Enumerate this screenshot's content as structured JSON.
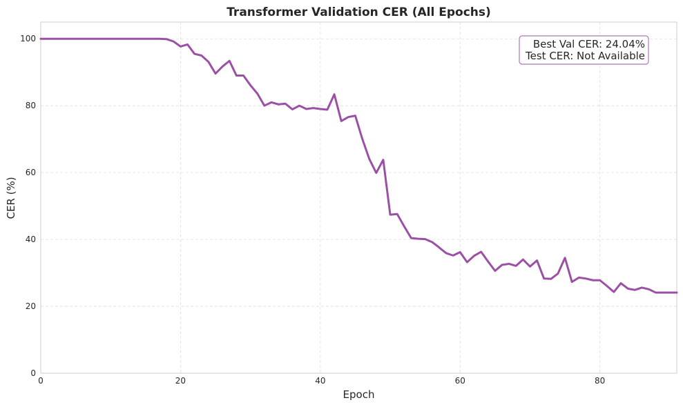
{
  "chart_data": {
    "type": "line",
    "title": "Transformer Validation CER (All Epochs)",
    "xlabel": "Epoch",
    "ylabel": "CER (%)",
    "xlim": [
      0,
      91
    ],
    "ylim": [
      0,
      105
    ],
    "xticks": [
      0,
      20,
      40,
      60,
      80
    ],
    "yticks": [
      0,
      20,
      40,
      60,
      80,
      100
    ],
    "grid": true,
    "series": [
      {
        "color": "#9b4fa5",
        "x": [
          0,
          1,
          2,
          3,
          4,
          5,
          6,
          7,
          8,
          9,
          10,
          11,
          12,
          13,
          14,
          15,
          16,
          17,
          18,
          19,
          20,
          21,
          22,
          23,
          24,
          25,
          26,
          27,
          28,
          29,
          30,
          31,
          32,
          33,
          34,
          35,
          36,
          37,
          38,
          39,
          40,
          41,
          42,
          43,
          44,
          45,
          46,
          47,
          48,
          49,
          50,
          51,
          52,
          53,
          54,
          55,
          56,
          57,
          58,
          59,
          60,
          61,
          62,
          63,
          64,
          65,
          66,
          67,
          68,
          69,
          70,
          71,
          72,
          73,
          74,
          75,
          76,
          77,
          78,
          79,
          80,
          81,
          82,
          83,
          84,
          85,
          86,
          87,
          88,
          89,
          90,
          91
        ],
        "y": [
          100,
          100,
          100,
          100,
          100,
          100,
          100,
          100,
          100,
          100,
          100,
          100,
          100,
          100,
          100,
          100,
          100,
          100,
          99.9,
          99.2,
          97.7,
          98.3,
          95.5,
          95.0,
          93.1,
          89.6,
          91.7,
          93.4,
          89.0,
          89.0,
          86.1,
          83.6,
          80.0,
          81.0,
          80.4,
          80.6,
          78.9,
          80.0,
          79.0,
          79.3,
          79.0,
          78.8,
          83.4,
          75.4,
          76.6,
          77.0,
          70.1,
          64.1,
          59.9,
          63.8,
          47.4,
          47.6,
          43.9,
          40.4,
          40.2,
          40.1,
          39.2,
          37.6,
          35.9,
          35.2,
          36.2,
          33.2,
          35.1,
          36.3,
          33.4,
          30.6,
          32.4,
          32.7,
          32.1,
          34.0,
          31.9,
          33.7,
          28.3,
          28.2,
          29.8,
          34.5,
          27.3,
          28.6,
          28.3,
          27.8,
          27.8,
          26.1,
          24.3,
          26.9,
          25.3,
          24.9,
          25.6,
          25.1,
          24.1,
          24.1,
          24.1,
          24.1
        ]
      }
    ]
  },
  "annotation": {
    "lines": [
      "Best Val CER: 24.04%",
      "Test CER: Not Available"
    ],
    "border_color": "#b074bb"
  }
}
